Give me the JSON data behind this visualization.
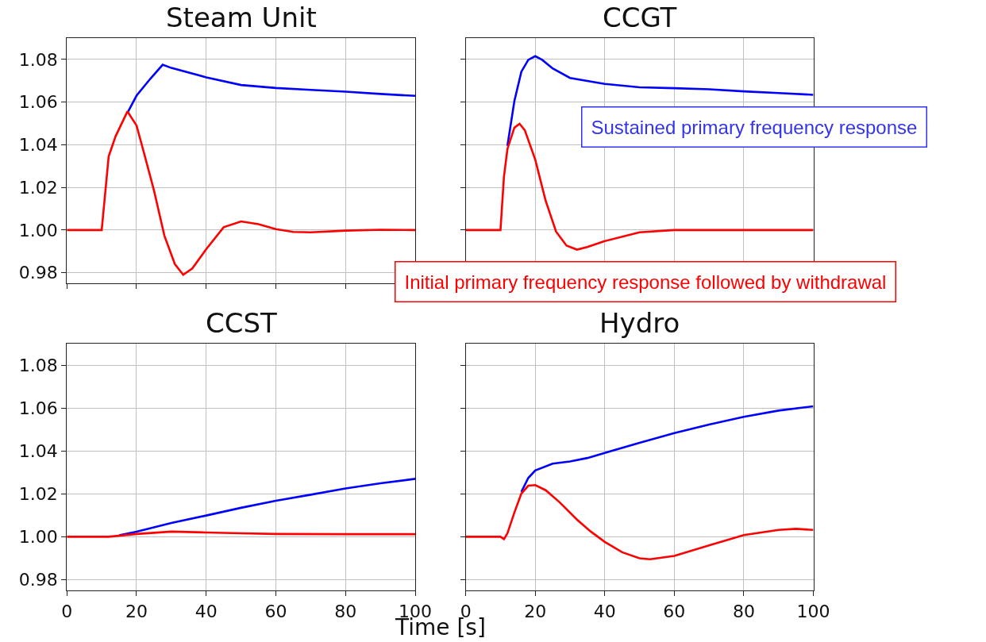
{
  "chart_data": [
    {
      "type": "line",
      "title": "Steam Unit",
      "xlim": [
        0,
        100
      ],
      "xticks": [
        {
          "value": 0,
          "label": null
        },
        {
          "value": 20,
          "label": null
        },
        {
          "value": 40,
          "label": null
        },
        {
          "value": 60,
          "label": null
        },
        {
          "value": 80,
          "label": null
        },
        {
          "value": 100,
          "label": null
        }
      ],
      "ylim": [
        0.975,
        1.09
      ],
      "yticks": [
        {
          "value": 0.98,
          "label": "0.98"
        },
        {
          "value": 1.0,
          "label": "1.00"
        },
        {
          "value": 1.02,
          "label": "1.02"
        },
        {
          "value": 1.04,
          "label": "1.04"
        },
        {
          "value": 1.06,
          "label": "1.06"
        },
        {
          "value": 1.08,
          "label": "1.08"
        }
      ],
      "grid": true,
      "tick_labels": "y",
      "annotations": [
        "Initial primary frequency response followed by withdrawal"
      ],
      "series": [
        {
          "color": "#0000ff",
          "x": [
            17.4,
            20,
            24,
            27.5,
            30,
            40,
            50,
            60,
            70,
            80,
            90,
            100
          ],
          "values": [
            1.055,
            1.063,
            1.071,
            1.0775,
            1.076,
            1.0716,
            1.068,
            1.0666,
            1.0657,
            1.0649,
            1.0638,
            1.0629
          ]
        },
        {
          "color": "#ff0000",
          "x": [
            0,
            10,
            12,
            14,
            17.4,
            20,
            22,
            25,
            28,
            31,
            33.4,
            36,
            40,
            45,
            50,
            55,
            60,
            65,
            70,
            80,
            90,
            100
          ],
          "values": [
            1.0,
            1.0,
            1.0345,
            1.044,
            1.0556,
            1.049,
            1.037,
            1.0186,
            0.9973,
            0.984,
            0.979,
            0.982,
            0.991,
            1.0013,
            1.004,
            1.0027,
            1.0004,
            0.9991,
            0.9989,
            0.9997,
            1.0001,
            1.0
          ]
        }
      ]
    },
    {
      "type": "line",
      "title": "CCGT",
      "xlim": [
        0,
        100
      ],
      "xticks": [
        {
          "value": 0,
          "label": null
        },
        {
          "value": 20,
          "label": null
        },
        {
          "value": 40,
          "label": null
        },
        {
          "value": 60,
          "label": null
        },
        {
          "value": 80,
          "label": null
        },
        {
          "value": 100,
          "label": null
        }
      ],
      "ylim": [
        0.975,
        1.09
      ],
      "yticks": [
        {
          "value": 0.98,
          "label": null
        },
        {
          "value": 1.0,
          "label": null
        },
        {
          "value": 1.02,
          "label": null
        },
        {
          "value": 1.04,
          "label": null
        },
        {
          "value": 1.06,
          "label": null
        },
        {
          "value": 1.08,
          "label": null
        }
      ],
      "grid": true,
      "tick_labels": false,
      "annotations": [
        "Sustained primary frequency response"
      ],
      "series": [
        {
          "color": "#0000ff",
          "x": [
            12,
            14,
            16,
            18,
            20,
            22,
            25,
            30,
            40,
            50,
            60,
            70,
            80,
            90,
            100
          ],
          "values": [
            1.0395,
            1.0605,
            1.0742,
            1.0798,
            1.0815,
            1.0798,
            1.0758,
            1.0713,
            1.0685,
            1.0669,
            1.0665,
            1.066,
            1.065,
            1.0642,
            1.0634
          ]
        },
        {
          "color": "#ff0000",
          "x": [
            0,
            10,
            11,
            12,
            14,
            15.5,
            17,
            20,
            23,
            26,
            29,
            32,
            35,
            40,
            50,
            60,
            70,
            100
          ],
          "values": [
            1.0,
            1.0,
            1.025,
            1.038,
            1.048,
            1.0498,
            1.0468,
            1.033,
            1.0137,
            0.9992,
            0.9927,
            0.9908,
            0.992,
            0.9948,
            0.9989,
            1.0,
            1.0,
            1.0
          ]
        }
      ]
    },
    {
      "type": "line",
      "title": "CCST",
      "xlabel": "Time [s]",
      "xlim": [
        0,
        100
      ],
      "xticks": [
        0,
        20,
        40,
        60,
        80,
        100
      ],
      "ylim": [
        0.975,
        1.09
      ],
      "yticks": [
        {
          "value": 0.98,
          "label": "0.98"
        },
        {
          "value": 1.0,
          "label": "1.00"
        },
        {
          "value": 1.02,
          "label": "1.02"
        },
        {
          "value": 1.04,
          "label": "1.04"
        },
        {
          "value": 1.06,
          "label": "1.06"
        },
        {
          "value": 1.08,
          "label": "1.08"
        }
      ],
      "grid": true,
      "series": [
        {
          "color": "#0000ff",
          "x": [
            15,
            20,
            30,
            40,
            50,
            60,
            70,
            80,
            90,
            100
          ],
          "values": [
            1.0007,
            1.0024,
            1.0064,
            1.0099,
            1.0135,
            1.0168,
            1.0196,
            1.0225,
            1.0249,
            1.027
          ]
        },
        {
          "color": "#ff0000",
          "x": [
            0,
            12,
            20,
            30,
            40,
            50,
            60,
            80,
            100
          ],
          "values": [
            1.0,
            1.0,
            1.0013,
            1.0024,
            1.002,
            1.0016,
            1.0013,
            1.0012,
            1.0012
          ]
        }
      ]
    },
    {
      "type": "line",
      "title": "Hydro",
      "xlim": [
        0,
        100
      ],
      "xticks": [
        0,
        20,
        40,
        60,
        80,
        100
      ],
      "ylim": [
        0.975,
        1.09
      ],
      "yticks": [
        {
          "value": 0.98,
          "label": null
        },
        {
          "value": 1.0,
          "label": null
        },
        {
          "value": 1.02,
          "label": null
        },
        {
          "value": 1.04,
          "label": null
        },
        {
          "value": 1.06,
          "label": null
        },
        {
          "value": 1.08,
          "label": null
        }
      ],
      "grid": true,
      "tick_labels": "x",
      "series": [
        {
          "color": "#0000ff",
          "x": [
            16,
            18,
            20,
            25,
            30,
            35,
            40,
            50,
            60,
            70,
            80,
            90,
            100
          ],
          "values": [
            1.0209,
            1.0274,
            1.0309,
            1.0341,
            1.0351,
            1.0367,
            1.0391,
            1.0438,
            1.0483,
            1.0523,
            1.0559,
            1.0588,
            1.0608
          ]
        },
        {
          "color": "#ff0000",
          "x": [
            0,
            10,
            11,
            12,
            14,
            16,
            18,
            20,
            23,
            27,
            32,
            36,
            40,
            45,
            50,
            53,
            60,
            70,
            80,
            90,
            95,
            100
          ],
          "values": [
            1.0,
            1.0,
            0.9989,
            1.0016,
            1.0113,
            1.0201,
            1.0238,
            1.0241,
            1.0217,
            1.0161,
            1.008,
            1.0024,
            0.9976,
            0.9928,
            0.99,
            0.9895,
            0.9911,
            0.996,
            1.0008,
            1.0032,
            1.0037,
            1.0032
          ]
        }
      ]
    }
  ]
}
